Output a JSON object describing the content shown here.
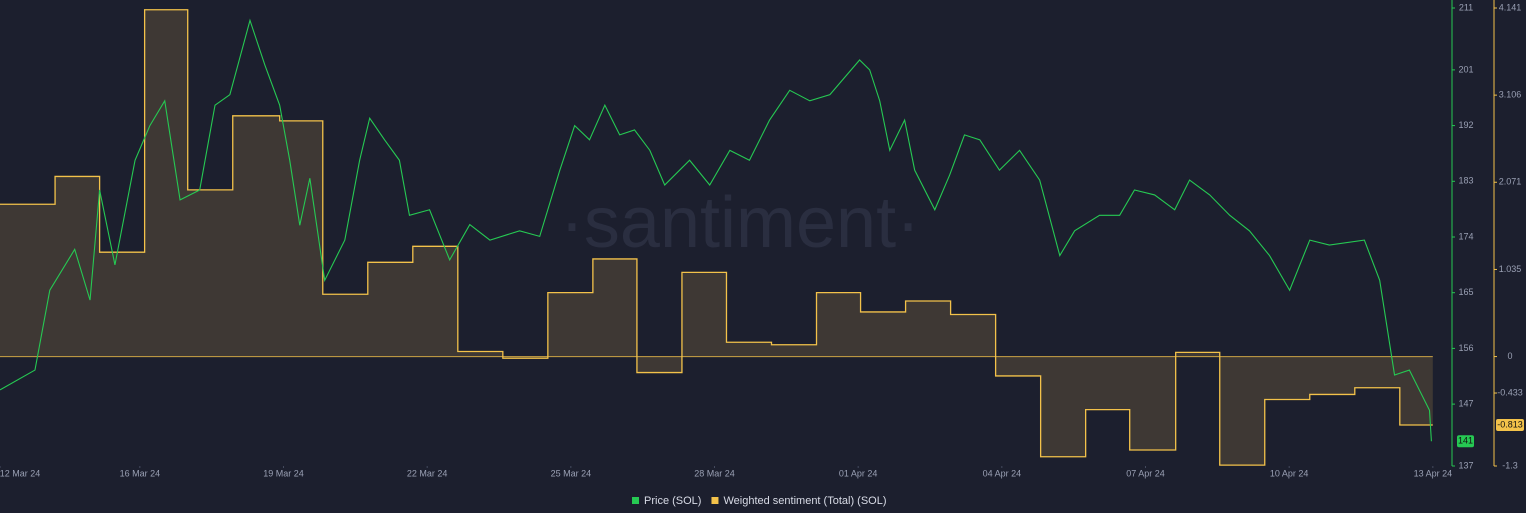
{
  "chart_data": {
    "type": "line",
    "watermark": "·santiment·",
    "xlim": [
      1.08,
      31.4
    ],
    "xticks": [
      {
        "value": 0,
        "label": "12 Mar 24"
      },
      {
        "value": 4,
        "label": "16 Mar 24"
      },
      {
        "value": 7,
        "label": "19 Mar 24"
      },
      {
        "value": 10,
        "label": "22 Mar 24"
      },
      {
        "value": 13,
        "label": "25 Mar 24"
      },
      {
        "value": 16,
        "label": "28 Mar 24"
      },
      {
        "value": 19,
        "label": "01 Apr 24"
      },
      {
        "value": 22,
        "label": "04 Apr 24"
      },
      {
        "value": 25,
        "label": "07 Apr 24"
      },
      {
        "value": 28,
        "label": "10 Apr 24"
      },
      {
        "value": 31,
        "label": "13 Apr 24"
      }
    ],
    "ylim": [
      137,
      211
    ],
    "yticks": [
      211,
      201,
      192,
      183,
      174,
      165,
      156,
      147,
      137
    ],
    "y2lim": [
      -1.3,
      4.141
    ],
    "y2ticks": [
      4.141,
      3.106,
      2.071,
      1.035,
      0,
      -0.433,
      -1.3
    ],
    "series": [
      {
        "name": "Price (SOL)",
        "color": "#26c953",
        "x": [
          1.08,
          1.81,
          2.12,
          2.64,
          2.96,
          3.16,
          3.48,
          3.9,
          4.21,
          4.52,
          4.84,
          5.25,
          5.57,
          5.88,
          6.3,
          6.61,
          6.92,
          7.13,
          7.34,
          7.55,
          7.86,
          8.28,
          8.59,
          8.8,
          9.11,
          9.42,
          9.63,
          10.05,
          10.47,
          10.89,
          11.31,
          11.93,
          12.35,
          12.77,
          13.08,
          13.39,
          13.71,
          14.02,
          14.33,
          14.65,
          14.96,
          15.48,
          15.9,
          16.32,
          16.73,
          17.15,
          17.57,
          17.99,
          18.41,
          19.03,
          19.24,
          19.45,
          19.66,
          19.97,
          20.18,
          20.6,
          20.91,
          21.22,
          21.54,
          21.95,
          22.37,
          22.79,
          23.21,
          23.52,
          24.04,
          24.46,
          24.77,
          25.19,
          25.61,
          25.92,
          26.34,
          26.76,
          27.17,
          27.59,
          28.01,
          28.43,
          28.84,
          29.57,
          29.89,
          30.2,
          30.51,
          30.93,
          30.97
        ],
        "values": [
          149.3,
          152.5,
          165.4,
          172,
          163.8,
          181.6,
          169.5,
          186.4,
          192,
          196,
          180,
          181.6,
          195.3,
          197,
          209,
          201.8,
          195.3,
          186.4,
          175.9,
          183.5,
          167,
          173.5,
          186.4,
          193.2,
          189.7,
          186.4,
          177.5,
          178.4,
          170.3,
          176,
          173.5,
          175,
          174.1,
          184.8,
          192,
          189.7,
          195.3,
          190.5,
          191.3,
          188,
          182.4,
          186.4,
          182.4,
          188,
          186.4,
          192.9,
          197.7,
          196,
          197,
          202.6,
          201,
          196,
          188,
          192.9,
          184.8,
          178.4,
          184,
          190.5,
          189.7,
          184.8,
          188,
          183.2,
          171,
          175,
          177.5,
          177.5,
          181.6,
          180.8,
          178.4,
          183.2,
          180.8,
          177.5,
          175,
          171,
          165.4,
          173.5,
          172.7,
          173.5,
          167,
          151.7,
          152.5,
          146,
          141
        ]
      },
      {
        "name": "Weighted sentiment (Total) (SOL)",
        "color": "#f3c24a",
        "axis": "y2",
        "step": "after",
        "x": [
          1.08,
          2.23,
          3.16,
          4.1,
          5.0,
          5.94,
          6.92,
          7.82,
          8.76,
          9.7,
          10.64,
          11.58,
          12.52,
          13.46,
          14.38,
          15.32,
          16.25,
          17.19,
          18.13,
          19.05,
          19.99,
          20.93,
          21.87,
          22.81,
          23.75,
          24.67,
          25.63,
          26.55,
          27.49,
          28.43,
          29.37,
          30.31
        ],
        "values": [
          1.81,
          2.14,
          1.24,
          4.12,
          1.98,
          2.86,
          2.8,
          0.74,
          1.12,
          1.31,
          0.06,
          -0.02,
          0.76,
          1.16,
          -0.19,
          1.0,
          0.17,
          0.14,
          0.76,
          0.53,
          0.66,
          0.5,
          -0.23,
          -1.19,
          -0.63,
          -1.11,
          0.05,
          -1.29,
          -0.51,
          -0.45,
          -0.37,
          -0.813
        ]
      }
    ]
  }
}
